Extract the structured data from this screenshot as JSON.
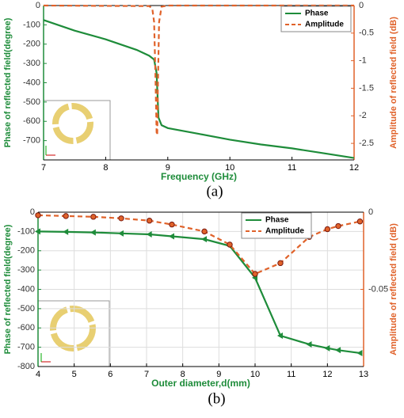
{
  "chart_data": [
    {
      "type": "line",
      "caption": "(a)",
      "xlabel": "Frequency (GHz)",
      "ylabel": "Phase of reflected field(degree)",
      "y2label": "Amplitude of reflected field (dB)",
      "xlim": [
        7,
        12
      ],
      "xticks": [
        7,
        8,
        9,
        10,
        11,
        12
      ],
      "ylim": [
        -800,
        0
      ],
      "yticks": [
        0,
        -100,
        -200,
        -300,
        -400,
        -500,
        -600,
        -700
      ],
      "y2lim": [
        -2.8,
        0
      ],
      "y2ticks": [
        0,
        -0.5,
        -1,
        -1.5,
        -2,
        -2.5
      ],
      "grid": false,
      "legend": "upper right",
      "series": [
        {
          "name": "Phase",
          "color": "#1e8c3a",
          "dash": false,
          "marker": "none",
          "x": [
            7,
            7.5,
            8,
            8.5,
            8.7,
            8.78,
            8.82,
            8.85,
            8.9,
            9,
            9.5,
            10,
            10.5,
            11,
            11.5,
            12
          ],
          "values": [
            -75,
            -130,
            -175,
            -230,
            -260,
            -280,
            -350,
            -580,
            -620,
            -635,
            -665,
            -695,
            -720,
            -740,
            -765,
            -790
          ]
        },
        {
          "name": "Amplitude",
          "color": "#e0622a",
          "dash": true,
          "marker": "none",
          "axis": "y2",
          "x": [
            7,
            8.7,
            8.75,
            8.78,
            8.8,
            8.82,
            8.83,
            8.84,
            8.86,
            8.9,
            9,
            12
          ],
          "values": [
            0,
            -0.01,
            -0.05,
            -0.3,
            -1.2,
            -2.3,
            -2.35,
            -1.5,
            -0.3,
            -0.02,
            0,
            0
          ]
        }
      ]
    },
    {
      "type": "line",
      "caption": "(b)",
      "xlabel": "Outer diameter,d(mm)",
      "ylabel": "Phase of reflected field(degree)",
      "y2label": "Amplitude of reflected field (dB)",
      "xlim": [
        4,
        13
      ],
      "xticks": [
        4,
        5,
        6,
        7,
        8,
        9,
        10,
        11,
        12,
        13
      ],
      "ylim": [
        -800,
        0
      ],
      "yticks": [
        0,
        -100,
        -200,
        -300,
        -400,
        -500,
        -600,
        -700,
        -800
      ],
      "y2lim": [
        -0.1,
        0
      ],
      "y2ticks": [
        0,
        -0.05
      ],
      "grid": true,
      "legend": "upper right",
      "series": [
        {
          "name": "Phase",
          "color": "#1e8c3a",
          "dash": false,
          "marker": "triangle",
          "x": [
            4,
            4.77,
            5.53,
            6.3,
            7.08,
            7.7,
            8.6,
            9.3,
            10,
            10.7,
            11.5,
            12,
            12.3,
            12.9
          ],
          "values": [
            -100,
            -102,
            -105,
            -110,
            -115,
            -125,
            -140,
            -175,
            -340,
            -640,
            -685,
            -705,
            -715,
            -730
          ]
        },
        {
          "name": "Amplitude",
          "color": "#e0622a",
          "dash": true,
          "marker": "circle",
          "axis": "y2",
          "x": [
            4,
            4.77,
            5.53,
            6.3,
            7.08,
            7.7,
            8.6,
            9.3,
            10,
            10.7,
            11.5,
            12,
            12.3,
            12.9
          ],
          "values": [
            -0.002,
            -0.0025,
            -0.003,
            -0.004,
            -0.0055,
            -0.008,
            -0.0125,
            -0.021,
            -0.04,
            -0.033,
            -0.016,
            -0.011,
            -0.009,
            -0.006
          ]
        }
      ]
    }
  ]
}
